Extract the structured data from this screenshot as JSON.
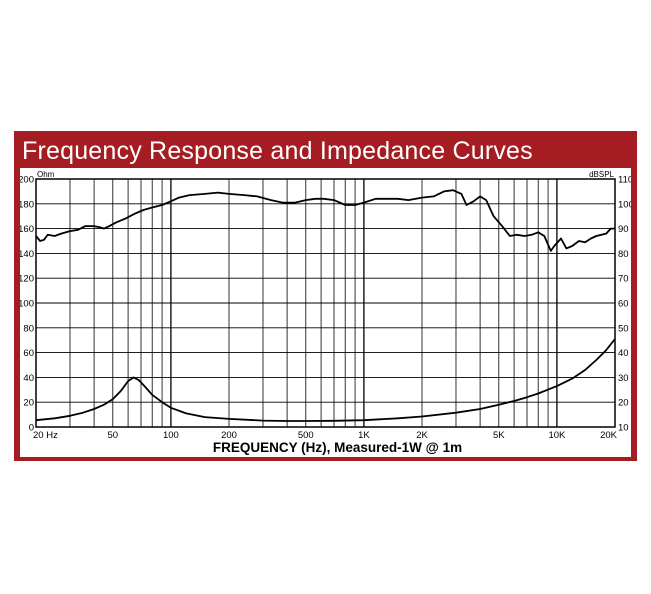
{
  "title": "Frequency Response and Impedance Curves",
  "colors": {
    "frame": "#a51d22",
    "title_text": "#ffffff",
    "curve": "#000000",
    "grid": "#000000"
  },
  "chart_data": {
    "type": "line",
    "title": "Frequency Response and Impedance Curves",
    "xlabel": "FREQUENCY (Hz), Measured-1W @ 1m",
    "x_scale": "log",
    "xlim": [
      20,
      20000
    ],
    "x_ticks": [
      {
        "value": 20,
        "label": "20 Hz"
      },
      {
        "value": 50,
        "label": "50"
      },
      {
        "value": 100,
        "label": "100"
      },
      {
        "value": 200,
        "label": "200"
      },
      {
        "value": 500,
        "label": "500"
      },
      {
        "value": 1000,
        "label": "1K"
      },
      {
        "value": 2000,
        "label": "2K"
      },
      {
        "value": 5000,
        "label": "5K"
      },
      {
        "value": 10000,
        "label": "10K"
      },
      {
        "value": 20000,
        "label": "20K"
      }
    ],
    "y_left": {
      "unit": "Ohm",
      "range": [
        0,
        200
      ],
      "ticks": [
        "0",
        "20",
        "40",
        "60",
        "80",
        "100",
        "120",
        "140",
        "160",
        "180",
        "200"
      ]
    },
    "y_right": {
      "unit": "dBSPL",
      "range": [
        10,
        110
      ],
      "ticks": [
        "10",
        "20",
        "30",
        "40",
        "50",
        "60",
        "70",
        "80",
        "90",
        "100",
        "110"
      ]
    },
    "grid": true,
    "series": [
      {
        "axis": "right",
        "points": [
          [
            20,
            87
          ],
          [
            21,
            85
          ],
          [
            22,
            85.5
          ],
          [
            23,
            87.5
          ],
          [
            25,
            87
          ],
          [
            27,
            88
          ],
          [
            30,
            89
          ],
          [
            33,
            89.5
          ],
          [
            36,
            91
          ],
          [
            40,
            91
          ],
          [
            43,
            90.5
          ],
          [
            45,
            90
          ],
          [
            48,
            91
          ],
          [
            52,
            92.5
          ],
          [
            58,
            94
          ],
          [
            65,
            96
          ],
          [
            72,
            97.5
          ],
          [
            80,
            98.5
          ],
          [
            90,
            99.5
          ],
          [
            100,
            101
          ],
          [
            110,
            102.5
          ],
          [
            125,
            103.5
          ],
          [
            150,
            104
          ],
          [
            175,
            104.5
          ],
          [
            200,
            104
          ],
          [
            240,
            103.5
          ],
          [
            280,
            103
          ],
          [
            330,
            101.5
          ],
          [
            380,
            100.5
          ],
          [
            440,
            100.5
          ],
          [
            500,
            101.5
          ],
          [
            560,
            102
          ],
          [
            620,
            102
          ],
          [
            700,
            101.5
          ],
          [
            800,
            99.5
          ],
          [
            900,
            99.5
          ],
          [
            1000,
            100.5
          ],
          [
            1150,
            102
          ],
          [
            1300,
            102
          ],
          [
            1500,
            102
          ],
          [
            1700,
            101.5
          ],
          [
            2000,
            102.5
          ],
          [
            2300,
            103
          ],
          [
            2600,
            105
          ],
          [
            2900,
            105.5
          ],
          [
            3200,
            104
          ],
          [
            3400,
            99.5
          ],
          [
            3700,
            101
          ],
          [
            4000,
            103
          ],
          [
            4300,
            101.5
          ],
          [
            4700,
            95
          ],
          [
            5200,
            91
          ],
          [
            5700,
            87
          ],
          [
            6200,
            87.5
          ],
          [
            6800,
            87
          ],
          [
            7400,
            87.5
          ],
          [
            8000,
            88.5
          ],
          [
            8600,
            87
          ],
          [
            9300,
            81
          ],
          [
            9700,
            83
          ],
          [
            10500,
            86
          ],
          [
            11200,
            82
          ],
          [
            12000,
            83
          ],
          [
            13000,
            85
          ],
          [
            14000,
            84.5
          ],
          [
            15000,
            86
          ],
          [
            16000,
            87
          ],
          [
            17000,
            87.5
          ],
          [
            18000,
            88
          ],
          [
            19000,
            90
          ],
          [
            20000,
            90
          ]
        ]
      },
      {
        "axis": "left",
        "points": [
          [
            20,
            5.5
          ],
          [
            25,
            7
          ],
          [
            30,
            9
          ],
          [
            35,
            11.5
          ],
          [
            40,
            14.5
          ],
          [
            45,
            18
          ],
          [
            50,
            22.5
          ],
          [
            55,
            29
          ],
          [
            60,
            37
          ],
          [
            64,
            40
          ],
          [
            68,
            38
          ],
          [
            73,
            33
          ],
          [
            80,
            26
          ],
          [
            90,
            20
          ],
          [
            100,
            15.5
          ],
          [
            120,
            11
          ],
          [
            150,
            8
          ],
          [
            200,
            6.5
          ],
          [
            300,
            5.2
          ],
          [
            400,
            4.8
          ],
          [
            500,
            4.8
          ],
          [
            700,
            5
          ],
          [
            1000,
            5.5
          ],
          [
            1500,
            7
          ],
          [
            2000,
            8.5
          ],
          [
            3000,
            11.5
          ],
          [
            4000,
            14.5
          ],
          [
            5000,
            18
          ],
          [
            6000,
            21
          ],
          [
            7000,
            24
          ],
          [
            8000,
            27
          ],
          [
            10000,
            33
          ],
          [
            12000,
            39
          ],
          [
            14000,
            46
          ],
          [
            16000,
            54
          ],
          [
            18000,
            62
          ],
          [
            20000,
            71
          ]
        ]
      }
    ]
  }
}
